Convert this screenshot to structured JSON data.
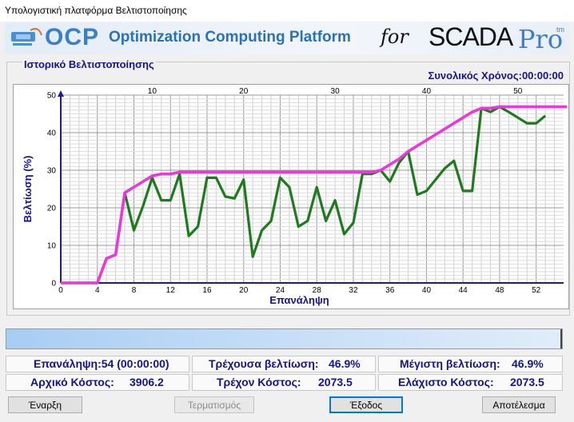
{
  "window": {
    "title": "Υπολογιστική πλατφόρμα Βελτιστοποίησης"
  },
  "banner": {
    "ocp": "OCP",
    "title": "Optimization Computing Platform",
    "for": "for",
    "scada": "SCADA",
    "pro": "Pro",
    "tm": "tm"
  },
  "group": {
    "title": "Ιστορικό Βελτιστοποίησης",
    "total_time": "Συνολικός Χρόνος:00:00:00"
  },
  "colors": {
    "current_series": "#1f7a1f",
    "best_series": "#e83ad6",
    "label_blue": "#14148c"
  },
  "chart_data": {
    "type": "line",
    "xlabel": "Επανάληψη",
    "ylabel": "Βελτίωση (%)",
    "xlim": [
      0,
      55
    ],
    "ylim": [
      0,
      50
    ],
    "x_ticks_bottom": [
      "0",
      "4",
      "8",
      "12",
      "16",
      "20",
      "24",
      "28",
      "32",
      "36",
      "40",
      "44",
      "48",
      "52"
    ],
    "x_ticks_top": [
      "10",
      "20",
      "30",
      "40",
      "50"
    ],
    "y_ticks": [
      "0",
      "10",
      "20",
      "30",
      "40",
      "50"
    ],
    "grid": true,
    "series": [
      {
        "x": [
          0,
          1,
          2,
          3,
          4,
          5,
          6,
          7,
          8,
          9,
          10,
          11,
          12,
          13,
          14,
          15,
          16,
          17,
          18,
          19,
          20,
          21,
          22,
          23,
          24,
          25,
          26,
          27,
          28,
          29,
          30,
          31,
          32,
          33,
          34,
          35,
          36,
          37,
          38,
          39,
          40,
          41,
          42,
          43,
          44,
          45,
          46,
          47,
          48,
          49,
          50,
          51,
          52,
          53,
          54
        ],
        "values": [
          0,
          0,
          0,
          0,
          0,
          6.5,
          7.5,
          24,
          14,
          20.5,
          28,
          22,
          22,
          29,
          12.5,
          15,
          28,
          28,
          23,
          22.5,
          27.5,
          7,
          14,
          16.5,
          28,
          25.5,
          15,
          16.5,
          25.5,
          16.5,
          22,
          13,
          16,
          29,
          29,
          30,
          27,
          32,
          35,
          23.5,
          24.5,
          27.5,
          30.5,
          32.5,
          24.5,
          24.5,
          46.5,
          45.5,
          46.9,
          45.5,
          44,
          42.5,
          42.5,
          44.5,
          null
        ]
      },
      {
        "x": [
          0,
          1,
          2,
          3,
          4,
          5,
          6,
          7,
          8,
          9,
          10,
          11,
          12,
          13,
          14,
          15,
          16,
          17,
          18,
          19,
          20,
          21,
          22,
          23,
          24,
          25,
          26,
          27,
          28,
          29,
          30,
          31,
          32,
          33,
          34,
          35,
          36,
          37,
          38,
          39,
          40,
          41,
          42,
          43,
          44,
          45,
          46,
          47,
          48,
          49,
          50,
          51,
          52,
          53,
          54
        ],
        "values": [
          0,
          0,
          0,
          0,
          0,
          6.5,
          7.5,
          24,
          25.5,
          27,
          28.5,
          29,
          29,
          29.5,
          29.5,
          29.5,
          29.5,
          29.5,
          29.5,
          29.5,
          29.5,
          29.5,
          29.5,
          29.5,
          29.5,
          29.5,
          29.5,
          29.5,
          29.5,
          29.5,
          29.5,
          29.5,
          29.5,
          29.5,
          29.5,
          30,
          31.5,
          33,
          35,
          36.5,
          38,
          39.5,
          41,
          42.5,
          44,
          45.5,
          46.5,
          46.5,
          46.9,
          46.9,
          46.9,
          46.9,
          46.9,
          46.9,
          46.9
        ]
      }
    ]
  },
  "stats": {
    "iteration_label": "Επανάληψη:54 (00:00:00)",
    "current_improvement_label": "Τρέχουσα βελτίωση:",
    "current_improvement_value": "46.9%",
    "max_improvement_label": "Μέγιστη βελτίωση:",
    "max_improvement_value": "46.9%",
    "initial_cost_label": "Αρχικό Κόστος:",
    "initial_cost_value": "3906.2",
    "current_cost_label": "Τρέχον Κόστος:",
    "current_cost_value": "2073.5",
    "min_cost_label": "Ελάχιστο Κόστος:",
    "min_cost_value": "2073.5"
  },
  "buttons": {
    "start": "Έναρξη",
    "stop": "Τερματισμός",
    "exit": "Έξοδος",
    "results": "Αποτέλεσμα"
  }
}
